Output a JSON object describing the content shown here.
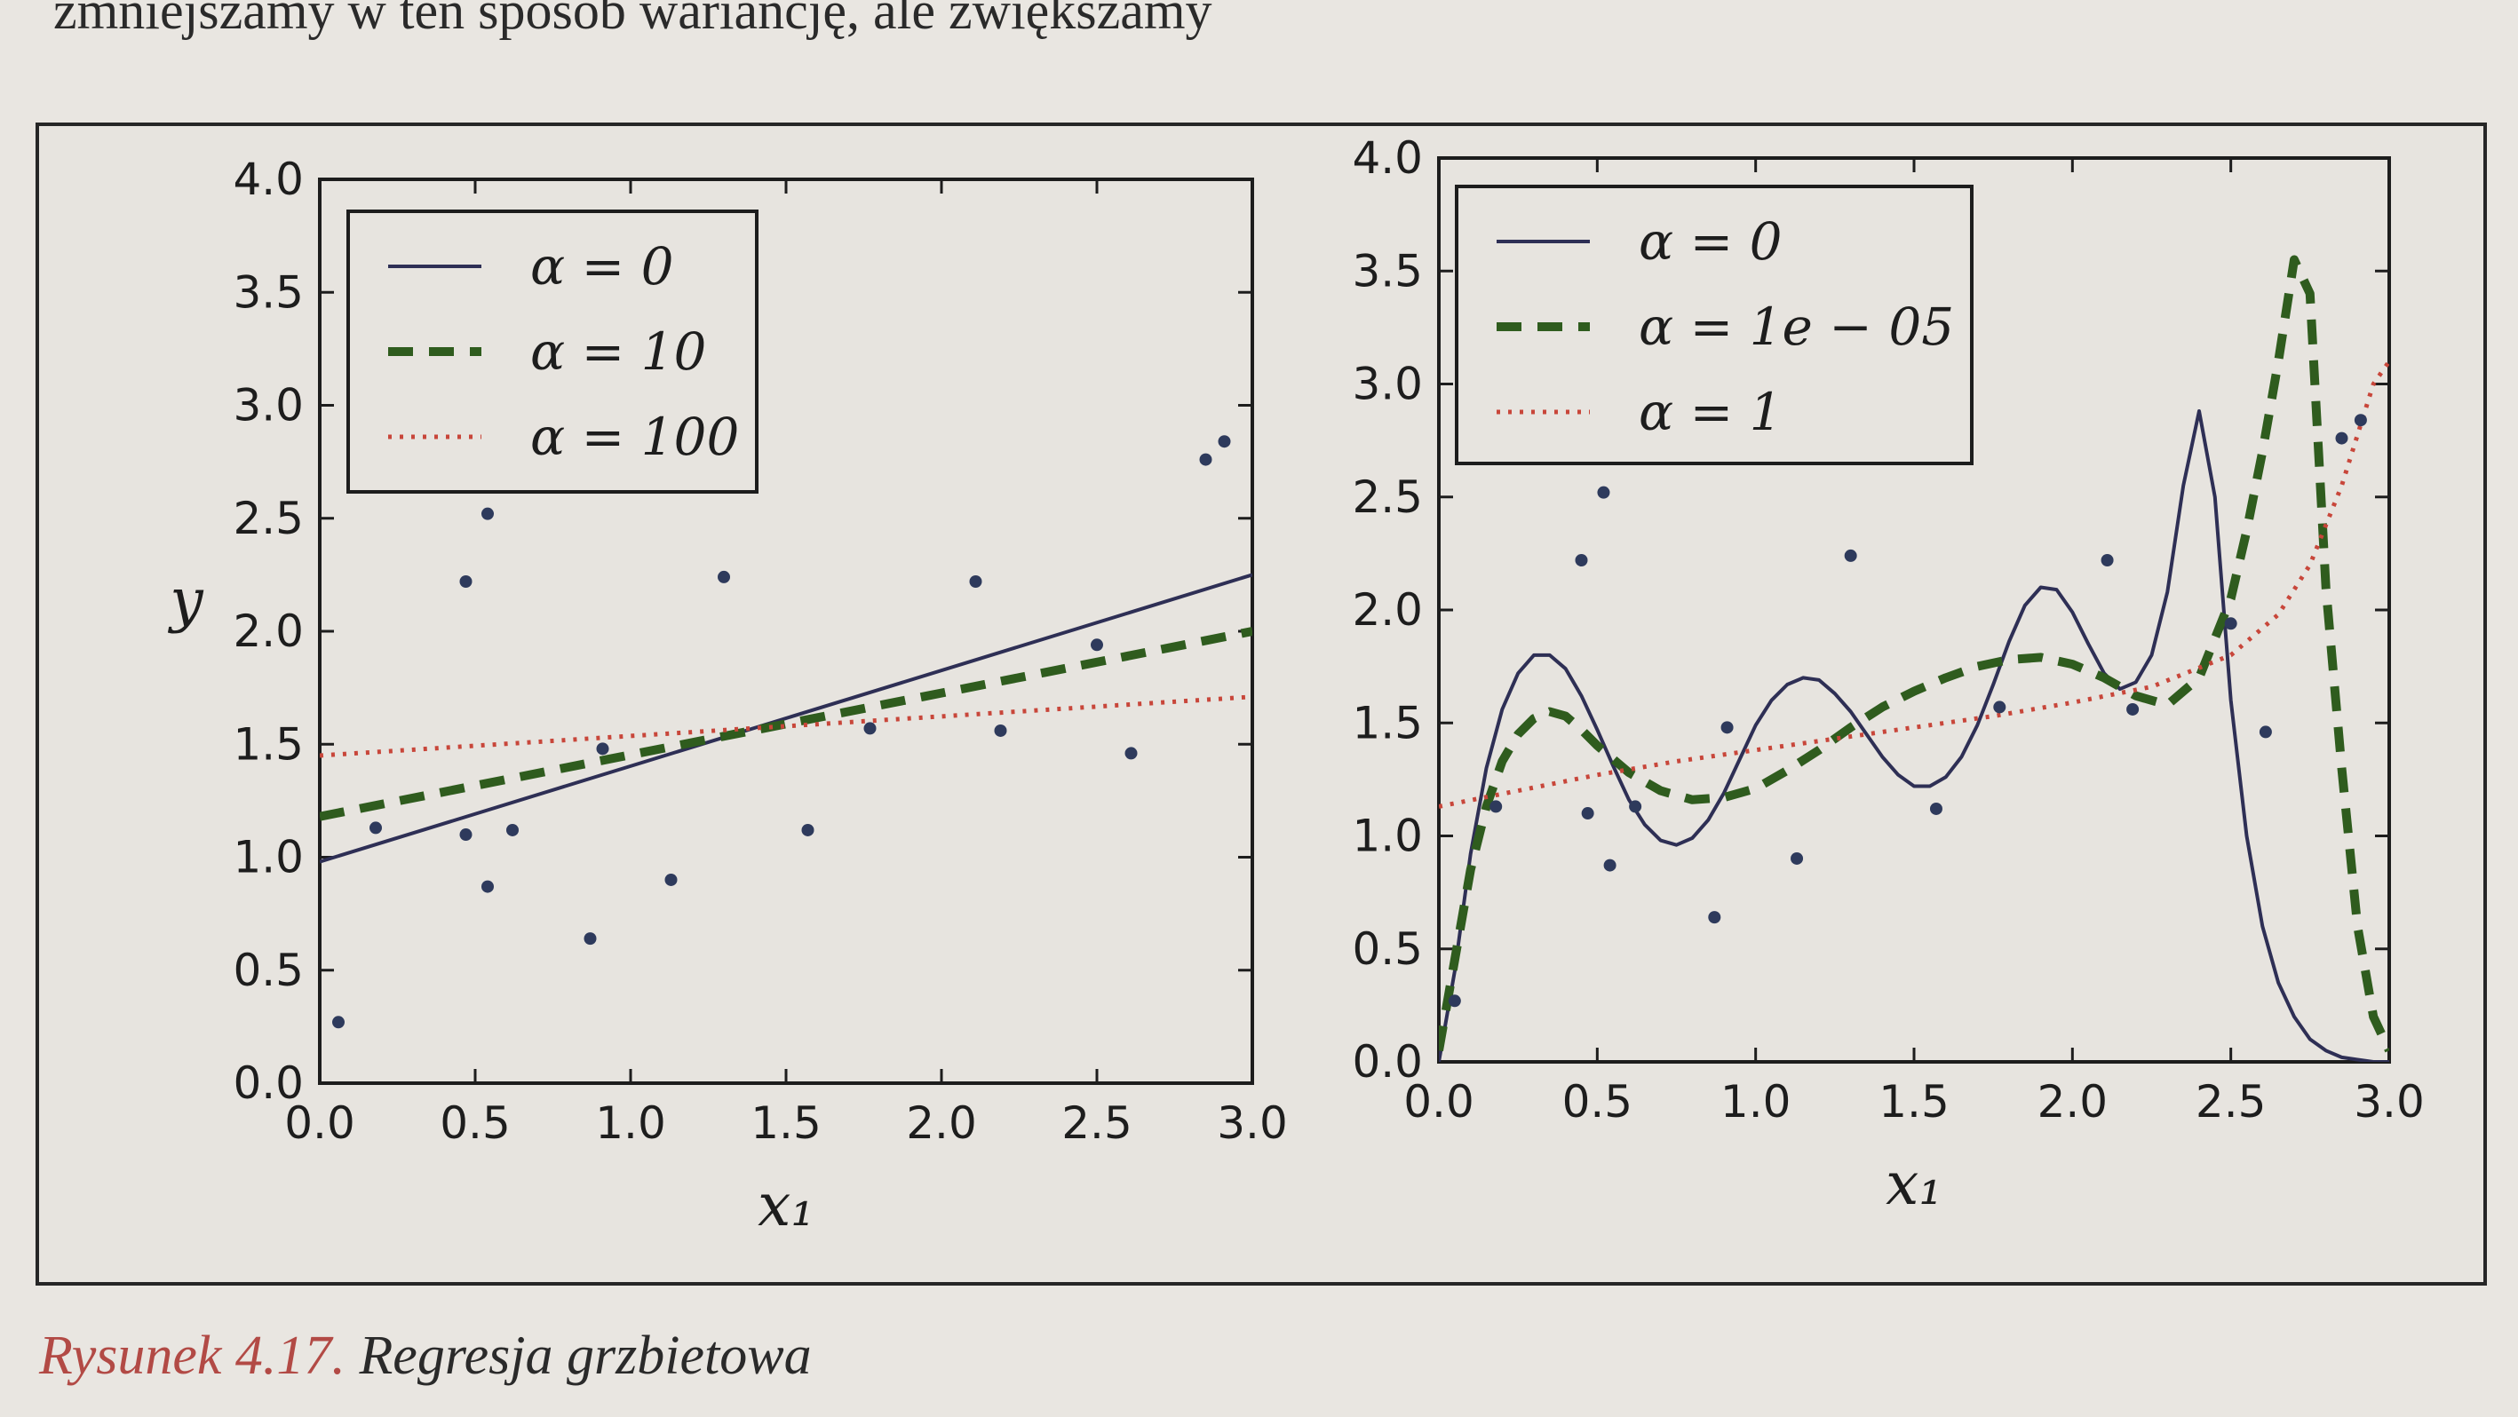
{
  "page": {
    "top_text": "zmniejszamy w ten sposób wariancję, ale zwiększamy",
    "caption_label": "Rysunek 4.17.",
    "caption_text": "Regresja grzbietowa"
  },
  "colors": {
    "solid": "#2e2f55",
    "dashed": "#2f5c1e",
    "dotted": "#c8463a",
    "points": "#2e3a5c",
    "axes": "#1d1d1d"
  },
  "chart_data": [
    {
      "type": "line",
      "xlabel": "x₁",
      "ylabel": "y",
      "xlim": [
        0.0,
        3.0
      ],
      "ylim": [
        0.0,
        4.0
      ],
      "xticks": [
        "0.0",
        "0.5",
        "1.0",
        "1.5",
        "2.0",
        "2.5",
        "3.0"
      ],
      "yticks": [
        "0.0",
        "0.5",
        "1.0",
        "1.5",
        "2.0",
        "2.5",
        "3.0",
        "3.5",
        "4.0"
      ],
      "legend_position": "top-left",
      "scatter": {
        "x": [
          0.06,
          0.18,
          0.47,
          0.47,
          0.54,
          0.54,
          0.62,
          0.87,
          0.91,
          1.13,
          1.3,
          1.57,
          1.77,
          2.11,
          2.19,
          2.5,
          2.61,
          2.85,
          2.91
        ],
        "y": [
          0.27,
          1.13,
          2.22,
          1.1,
          2.52,
          0.87,
          1.12,
          0.64,
          1.48,
          0.9,
          2.24,
          1.12,
          1.57,
          2.22,
          1.56,
          1.94,
          1.46,
          2.76,
          2.84
        ]
      },
      "series": [
        {
          "name": "α = 0",
          "style": "solid",
          "x": [
            0.0,
            3.0
          ],
          "y": [
            0.98,
            2.25
          ]
        },
        {
          "name": "α = 10",
          "style": "dashed",
          "x": [
            0.0,
            3.0
          ],
          "y": [
            1.18,
            2.0
          ]
        },
        {
          "name": "α = 100",
          "style": "dotted",
          "x": [
            0.0,
            3.0
          ],
          "y": [
            1.45,
            1.71
          ]
        }
      ]
    },
    {
      "type": "line",
      "xlabel": "x₁",
      "ylabel": "",
      "xlim": [
        0.0,
        3.0
      ],
      "ylim": [
        0.0,
        4.0
      ],
      "xticks": [
        "0.0",
        "0.5",
        "1.0",
        "1.5",
        "2.0",
        "2.5",
        "3.0"
      ],
      "yticks": [
        "0.0",
        "0.5",
        "1.0",
        "1.5",
        "2.0",
        "2.5",
        "3.0",
        "3.5",
        "4.0"
      ],
      "legend_position": "top-left",
      "scatter": {
        "x": [
          0.05,
          0.18,
          0.45,
          0.47,
          0.52,
          0.54,
          0.62,
          0.87,
          0.91,
          1.13,
          1.3,
          1.57,
          1.77,
          2.11,
          2.19,
          2.5,
          2.61,
          2.85,
          2.91
        ],
        "y": [
          0.27,
          1.13,
          2.22,
          1.1,
          2.52,
          0.87,
          1.13,
          0.64,
          1.48,
          0.9,
          2.24,
          1.12,
          1.57,
          2.22,
          1.56,
          1.94,
          1.46,
          2.76,
          2.84
        ]
      },
      "series": [
        {
          "name": "α = 0",
          "style": "solid",
          "x": [
            0.0,
            0.05,
            0.1,
            0.15,
            0.2,
            0.25,
            0.3,
            0.35,
            0.4,
            0.45,
            0.5,
            0.55,
            0.6,
            0.65,
            0.7,
            0.75,
            0.8,
            0.85,
            0.9,
            0.95,
            1.0,
            1.05,
            1.1,
            1.15,
            1.2,
            1.25,
            1.3,
            1.35,
            1.4,
            1.45,
            1.5,
            1.55,
            1.6,
            1.65,
            1.7,
            1.75,
            1.8,
            1.85,
            1.9,
            1.95,
            2.0,
            2.05,
            2.1,
            2.15,
            2.2,
            2.25,
            2.3,
            2.35,
            2.4,
            2.45,
            2.5,
            2.55,
            2.6,
            2.65,
            2.7,
            2.75,
            2.8,
            2.85,
            2.9,
            2.95,
            3.0
          ],
          "y": [
            0.0,
            0.4,
            0.92,
            1.3,
            1.56,
            1.72,
            1.8,
            1.8,
            1.74,
            1.62,
            1.47,
            1.31,
            1.16,
            1.05,
            0.98,
            0.96,
            0.99,
            1.07,
            1.19,
            1.34,
            1.49,
            1.6,
            1.67,
            1.7,
            1.69,
            1.63,
            1.55,
            1.45,
            1.35,
            1.27,
            1.22,
            1.22,
            1.26,
            1.35,
            1.49,
            1.67,
            1.86,
            2.02,
            2.1,
            2.09,
            1.99,
            1.85,
            1.72,
            1.65,
            1.68,
            1.8,
            2.08,
            2.55,
            2.88,
            2.5,
            1.6,
            1.0,
            0.6,
            0.35,
            0.2,
            0.1,
            0.05,
            0.02,
            0.01,
            0.0,
            0.0
          ]
        },
        {
          "name": "α = 1e − 05",
          "style": "dashed",
          "x": [
            0.0,
            0.05,
            0.1,
            0.15,
            0.2,
            0.25,
            0.3,
            0.35,
            0.4,
            0.45,
            0.5,
            0.6,
            0.7,
            0.8,
            0.9,
            1.0,
            1.1,
            1.2,
            1.3,
            1.4,
            1.5,
            1.6,
            1.7,
            1.8,
            1.9,
            2.0,
            2.1,
            2.2,
            2.3,
            2.4,
            2.5,
            2.55,
            2.6,
            2.65,
            2.7,
            2.75,
            2.8,
            2.85,
            2.9,
            2.95,
            3.0
          ],
          "y": [
            0.05,
            0.45,
            0.85,
            1.13,
            1.33,
            1.45,
            1.52,
            1.55,
            1.53,
            1.47,
            1.4,
            1.28,
            1.2,
            1.16,
            1.17,
            1.21,
            1.29,
            1.38,
            1.48,
            1.57,
            1.64,
            1.7,
            1.75,
            1.78,
            1.79,
            1.76,
            1.7,
            1.62,
            1.58,
            1.7,
            2.05,
            2.35,
            2.7,
            3.1,
            3.55,
            3.4,
            2.1,
            1.3,
            0.6,
            0.2,
            0.05
          ]
        },
        {
          "name": "α = 1",
          "style": "dotted",
          "x": [
            0.0,
            0.25,
            0.5,
            0.75,
            1.0,
            1.25,
            1.5,
            1.75,
            2.0,
            2.25,
            2.5,
            2.65,
            2.75,
            2.85,
            2.95,
            3.0
          ],
          "y": [
            1.13,
            1.2,
            1.27,
            1.33,
            1.38,
            1.43,
            1.48,
            1.53,
            1.59,
            1.66,
            1.8,
            1.98,
            2.2,
            2.55,
            3.0,
            3.1
          ]
        }
      ]
    }
  ]
}
